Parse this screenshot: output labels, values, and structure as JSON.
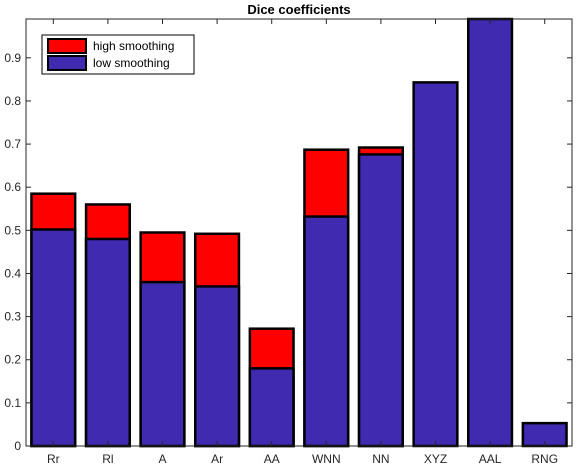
{
  "chart_data": {
    "type": "bar",
    "stacked": "overlay",
    "title": "Dice coefficients",
    "xlabel": "",
    "ylabel": "",
    "categories": [
      "Rr",
      "Rl",
      "A",
      "Ar",
      "AA",
      "WNN",
      "NN",
      "XYZ",
      "AAL",
      "RNG"
    ],
    "series": [
      {
        "name": "high smoothing",
        "color": "#ff0000",
        "values": [
          0.585,
          0.56,
          0.495,
          0.492,
          0.272,
          0.687,
          0.692,
          null,
          null,
          null
        ]
      },
      {
        "name": "low smoothing",
        "color": "#3f2ab0",
        "values": [
          0.502,
          0.48,
          0.38,
          0.37,
          0.18,
          0.532,
          0.676,
          0.843,
          0.99,
          0.053
        ]
      }
    ],
    "ylim": [
      0,
      0.99
    ],
    "yticks": [
      "0",
      "0.1",
      "0.2",
      "0.3",
      "0.4",
      "0.5",
      "0.6",
      "0.7",
      "0.8",
      "0.9"
    ],
    "legend_position": "top-left",
    "grid": false
  }
}
